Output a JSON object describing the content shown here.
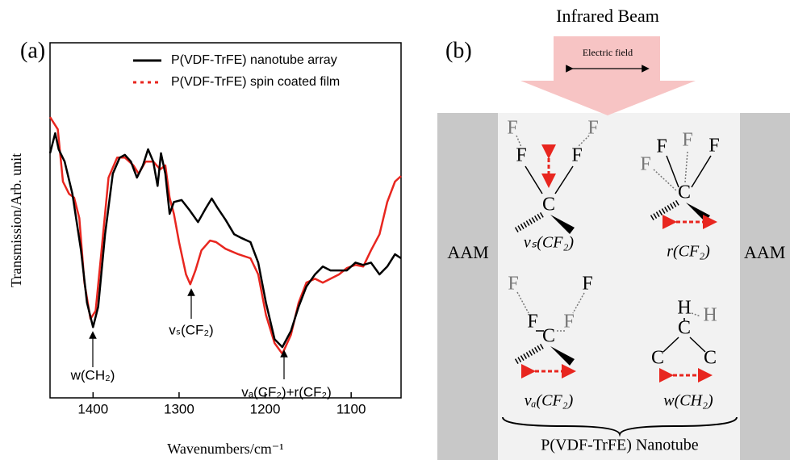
{
  "panel_labels": [
    "(a)",
    "(b)"
  ],
  "chart_data": {
    "type": "line",
    "xlabel": "Wavenumbers/cm⁻¹",
    "ylabel": "Transmission/Arb. unit",
    "xlim": [
      1450,
      1042
    ],
    "ylim": [
      9.7,
      100
    ],
    "xticks": [
      1400,
      1300,
      1200,
      1100
    ],
    "legend": "upper right",
    "series": [
      {
        "name": "P(VDF-TrFE) nanotube array",
        "color": "#000000",
        "style": "solid",
        "x": [
          1450,
          1444,
          1440,
          1433,
          1424,
          1414,
          1407,
          1400,
          1394,
          1386,
          1377,
          1369,
          1363,
          1356,
          1349,
          1342,
          1336,
          1330,
          1325,
          1321,
          1316,
          1311,
          1306,
          1297,
          1288,
          1278,
          1269,
          1262,
          1255,
          1246,
          1236,
          1227,
          1217,
          1208,
          1199,
          1189,
          1180,
          1170,
          1161,
          1152,
          1142,
          1133,
          1124,
          1114,
          1105,
          1095,
          1086,
          1077,
          1067,
          1058,
          1049,
          1042
        ],
        "values": [
          71.9,
          77.0,
          72.9,
          69.8,
          61.6,
          47.2,
          33.9,
          27.7,
          32.9,
          51.3,
          66.7,
          70.8,
          71.5,
          69.8,
          65.7,
          68.8,
          72.9,
          69.8,
          63.6,
          71.9,
          66.7,
          56.5,
          59.5,
          60.0,
          57.5,
          54.4,
          57.9,
          60.4,
          57.9,
          55.0,
          51.3,
          50.3,
          49.3,
          44.1,
          33.9,
          24.6,
          22.6,
          26.7,
          32.9,
          38.0,
          41.1,
          43.1,
          42.1,
          42.1,
          42.1,
          44.1,
          43.5,
          44.1,
          41.1,
          43.1,
          46.2,
          45.2
        ]
      },
      {
        "name": "P(VDF-TrFE) spin coated film",
        "color": "#e8261f",
        "style": "dotted",
        "x": [
          1450,
          1441,
          1435,
          1428,
          1422,
          1416,
          1410,
          1403,
          1397,
          1391,
          1382,
          1372,
          1363,
          1353,
          1347,
          1339,
          1330,
          1322,
          1316,
          1311,
          1306,
          1300,
          1292,
          1287,
          1281,
          1274,
          1264,
          1257,
          1246,
          1231,
          1217,
          1208,
          1199,
          1189,
          1180,
          1170,
          1161,
          1152,
          1142,
          1133,
          1124,
          1114,
          1105,
          1095,
          1086,
          1077,
          1067,
          1058,
          1049,
          1042
        ],
        "values": [
          81.1,
          78.0,
          64.7,
          61.6,
          60.6,
          55.4,
          39.0,
          29.8,
          31.8,
          45.2,
          65.7,
          70.8,
          70.8,
          68.8,
          66.7,
          69.8,
          69.8,
          67.8,
          68.8,
          60.6,
          56.5,
          49.3,
          41.1,
          38.6,
          42.1,
          47.2,
          49.7,
          49.3,
          47.6,
          46.2,
          45.2,
          41.1,
          30.8,
          23.6,
          20.9,
          25.7,
          33.9,
          39.0,
          40.0,
          39.0,
          40.0,
          41.1,
          42.7,
          43.5,
          43.1,
          47.2,
          51.3,
          59.5,
          64.7,
          66.1
        ]
      }
    ],
    "annotations": [
      "w(CH₂)",
      "vₛ(CF₂)",
      "vₐ(CF₂)+r(CF₂)"
    ]
  },
  "diagram": {
    "title": "Infrared Beam",
    "field_label": "Electric field",
    "walls": [
      "AAM",
      "AAM"
    ],
    "molecules": [
      {
        "label": "vₛ(CF₂)",
        "atoms": [
          "F",
          "F",
          "F",
          "F",
          "C"
        ]
      },
      {
        "label": "r(CF₂)",
        "atoms": [
          "F",
          "F",
          "F",
          "F",
          "C"
        ]
      },
      {
        "label": "vₐ(CF₂)",
        "atoms": [
          "F",
          "F",
          "F",
          "F",
          "C"
        ]
      },
      {
        "label": "w(CH₂)",
        "atoms": [
          "H",
          "H",
          "C",
          "C",
          "C"
        ]
      }
    ],
    "caption": "P(VDF-TrFE) Nanotube"
  }
}
